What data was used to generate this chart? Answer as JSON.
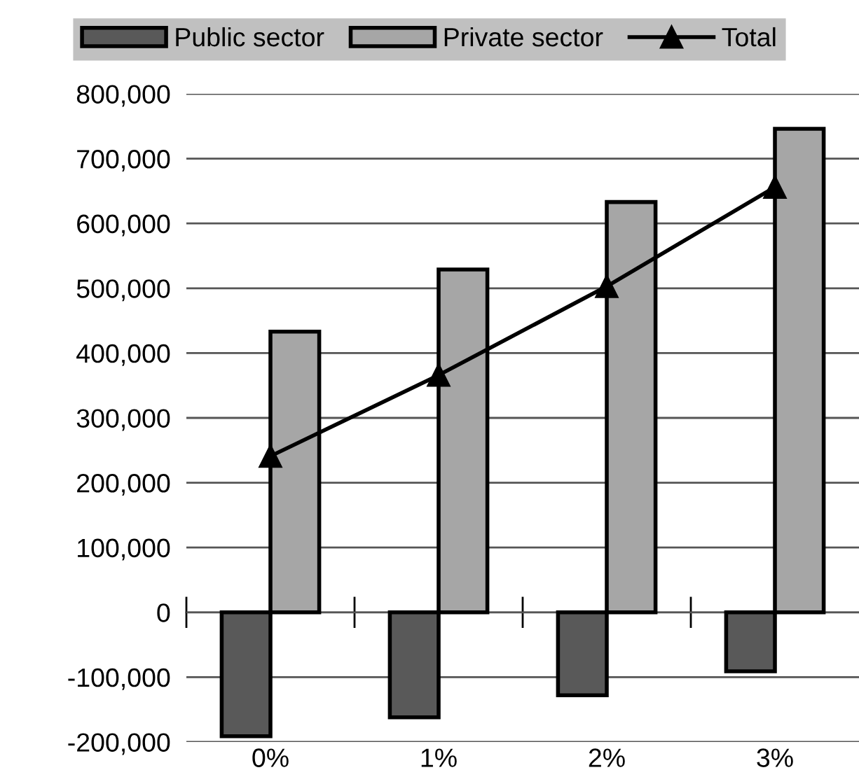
{
  "chart_data": {
    "type": "bar",
    "categories": [
      "0%",
      "1%",
      "2%",
      "3%"
    ],
    "series": [
      {
        "name": "Public sector",
        "color": "#595959",
        "values": [
          -191000,
          -162000,
          -128000,
          -91000
        ]
      },
      {
        "name": "Private sector",
        "color": "#a6a6a6",
        "values": [
          433000,
          529000,
          633000,
          746000
        ]
      },
      {
        "name": "Total",
        "type": "line",
        "color": "#000000",
        "marker": "triangle",
        "values": [
          241000,
          366000,
          503000,
          656000
        ]
      }
    ],
    "ylim": [
      -200000,
      800000
    ],
    "yticks": [
      {
        "value": -200000,
        "label": "-200,000"
      },
      {
        "value": -100000,
        "label": "-100,000"
      },
      0,
      {
        "value": 100000,
        "label": "100,000"
      },
      {
        "value": 200000,
        "label": "200,000"
      },
      {
        "value": 300000,
        "label": "300,000"
      },
      {
        "value": 400000,
        "label": "400,000"
      },
      {
        "value": 500000,
        "label": "500,000"
      },
      {
        "value": 600000,
        "label": "600,000"
      },
      {
        "value": 700000,
        "label": "700,000"
      },
      {
        "value": 800000,
        "label": "800,000"
      }
    ],
    "grid": "y",
    "legend": "top"
  }
}
